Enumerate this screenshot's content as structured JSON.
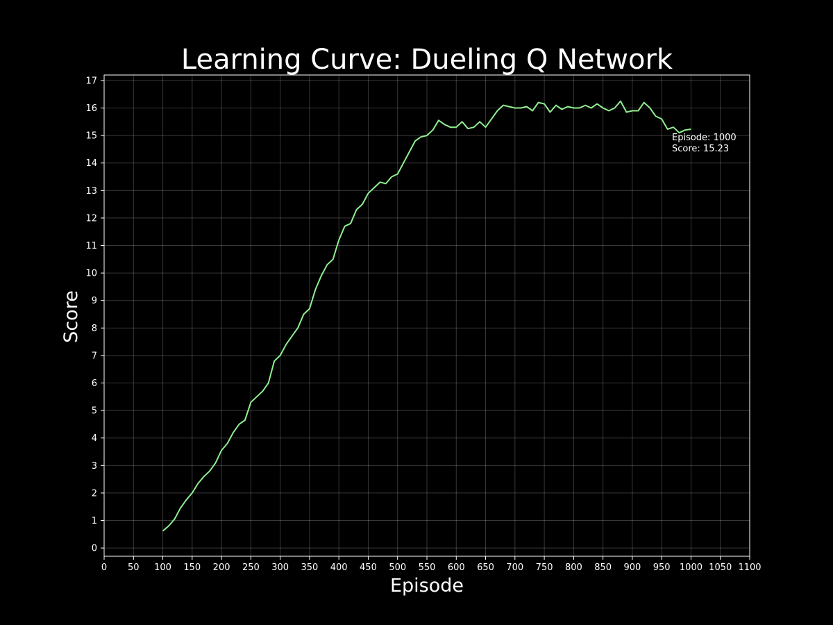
{
  "chart_data": {
    "type": "line",
    "title": "Learning Curve: Dueling Q Network",
    "xlabel": "Episode",
    "ylabel": "Score",
    "xlim": [
      0,
      1100
    ],
    "ylim": [
      -0.3,
      17.2
    ],
    "x_ticks": [
      0,
      50,
      100,
      150,
      200,
      250,
      300,
      350,
      400,
      450,
      500,
      550,
      600,
      650,
      700,
      750,
      800,
      850,
      900,
      950,
      1000,
      1050,
      1100
    ],
    "y_ticks": [
      0,
      1,
      2,
      3,
      4,
      5,
      6,
      7,
      8,
      9,
      10,
      11,
      12,
      13,
      14,
      15,
      16,
      17
    ],
    "grid": true,
    "line_color": "#90ee90",
    "background": "#000000",
    "annotation": {
      "line1": "Episode: 1000",
      "line2": "Score: 15.23"
    },
    "series": [
      {
        "x": [
          100,
          110,
          120,
          130,
          140,
          150,
          160,
          170,
          180,
          190,
          200,
          210,
          220,
          230,
          240,
          250,
          260,
          270,
          280,
          290,
          300,
          310,
          320,
          330,
          340,
          350,
          360,
          370,
          380,
          390,
          400,
          410,
          420,
          430,
          440,
          450,
          460,
          470,
          480,
          490,
          500,
          510,
          520,
          530,
          540,
          550,
          560,
          570,
          580,
          590,
          600,
          610,
          620,
          630,
          640,
          650,
          660,
          670,
          680,
          690,
          700,
          710,
          720,
          730,
          740,
          750,
          760,
          770,
          780,
          790,
          800,
          810,
          820,
          830,
          840,
          850,
          860,
          870,
          880,
          890,
          900,
          910,
          920,
          930,
          940,
          950,
          960,
          970,
          980,
          990,
          1000
        ],
        "y": [
          0.62,
          0.8,
          1.05,
          1.45,
          1.75,
          2.0,
          2.35,
          2.6,
          2.8,
          3.1,
          3.55,
          3.8,
          4.2,
          4.5,
          4.65,
          5.3,
          5.5,
          5.7,
          6.0,
          6.8,
          7.0,
          7.4,
          7.7,
          8.0,
          8.5,
          8.7,
          9.4,
          9.9,
          10.3,
          10.5,
          11.2,
          11.7,
          11.8,
          12.3,
          12.5,
          12.9,
          13.1,
          13.3,
          13.25,
          13.5,
          13.6,
          14.0,
          14.4,
          14.8,
          14.95,
          15.0,
          15.2,
          15.55,
          15.4,
          15.3,
          15.3,
          15.5,
          15.25,
          15.3,
          15.5,
          15.3,
          15.6,
          15.9,
          16.1,
          16.05,
          16.0,
          16.0,
          16.05,
          15.9,
          16.2,
          16.15,
          15.85,
          16.1,
          15.95,
          16.05,
          16.0,
          16.0,
          16.1,
          16.0,
          16.15,
          16.0,
          15.9,
          16.0,
          16.25,
          15.85,
          15.9,
          15.9,
          16.2,
          16.0,
          15.7,
          15.6,
          15.23,
          15.3,
          15.1,
          15.2,
          15.23
        ]
      }
    ]
  }
}
